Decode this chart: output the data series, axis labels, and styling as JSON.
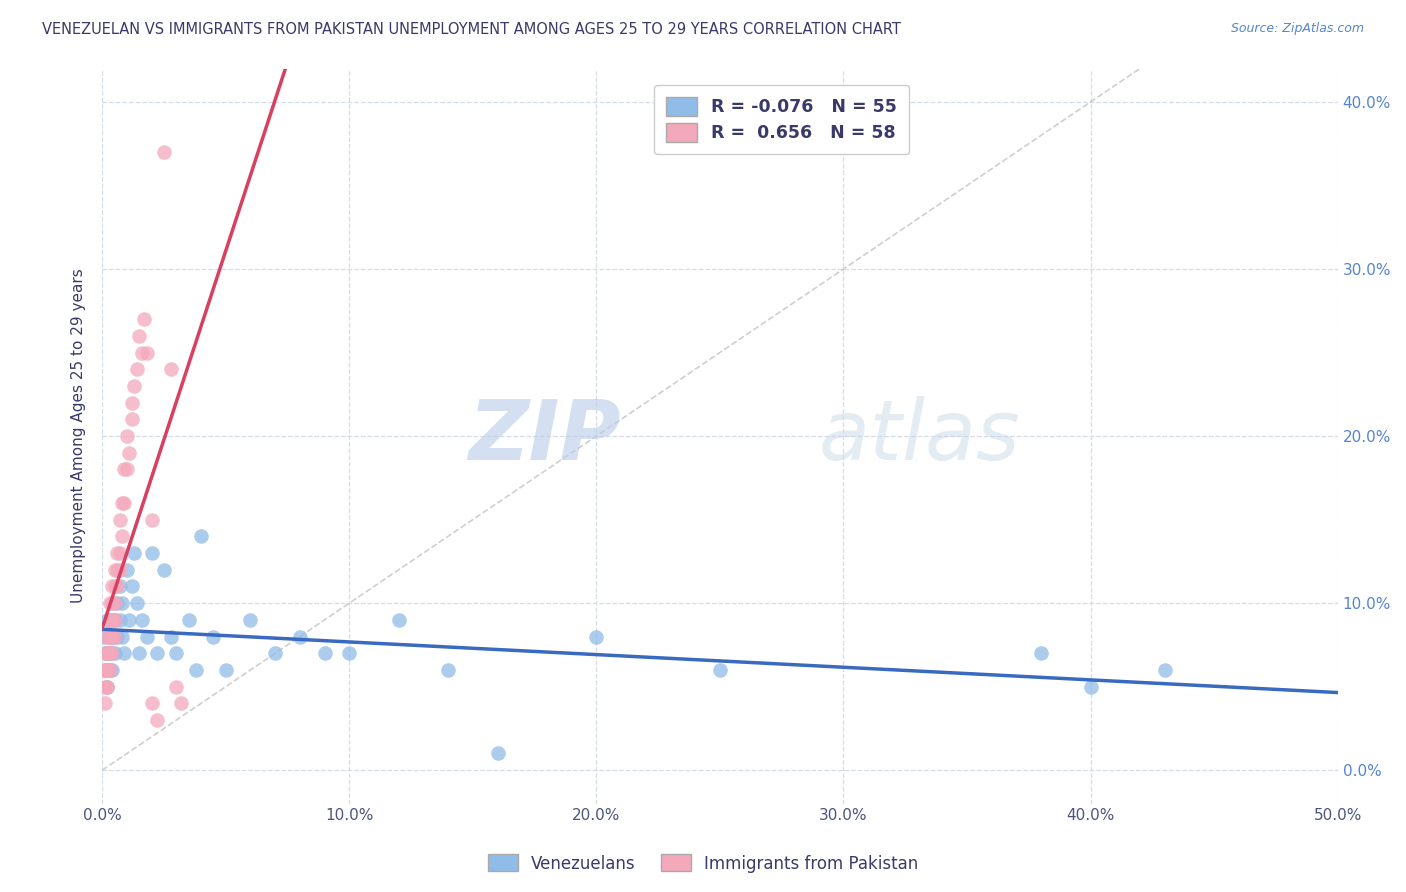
{
  "title": "VENEZUELAN VS IMMIGRANTS FROM PAKISTAN UNEMPLOYMENT AMONG AGES 25 TO 29 YEARS CORRELATION CHART",
  "source": "Source: ZipAtlas.com",
  "ylabel": "Unemployment Among Ages 25 to 29 years",
  "xlim": [
    0,
    0.5
  ],
  "ylim": [
    -0.02,
    0.42
  ],
  "legend_venezuelans": "Venezuelans",
  "legend_pakistan": "Immigrants from Pakistan",
  "R_venezuelan": -0.076,
  "N_venezuelan": 55,
  "R_pakistan": 0.656,
  "N_pakistan": 58,
  "blue_color": "#90bce8",
  "pink_color": "#f4a8bb",
  "blue_line_color": "#3a6abf",
  "pink_line_color": "#d94060",
  "watermark_zip": "ZIP",
  "watermark_atlas": "atlas",
  "watermark_color": "#c5d9f0",
  "background_color": "#ffffff",
  "grid_color": "#d3dce8",
  "x_ticks": [
    0.0,
    0.1,
    0.2,
    0.3,
    0.4,
    0.5
  ],
  "y_ticks": [
    0.0,
    0.1,
    0.2,
    0.3,
    0.4
  ],
  "venezuelan_x": [
    0.001,
    0.001,
    0.001,
    0.002,
    0.002,
    0.002,
    0.002,
    0.003,
    0.003,
    0.003,
    0.003,
    0.004,
    0.004,
    0.004,
    0.005,
    0.005,
    0.005,
    0.006,
    0.006,
    0.007,
    0.007,
    0.008,
    0.008,
    0.009,
    0.01,
    0.011,
    0.012,
    0.013,
    0.014,
    0.015,
    0.016,
    0.018,
    0.02,
    0.022,
    0.025,
    0.028,
    0.03,
    0.035,
    0.038,
    0.04,
    0.045,
    0.05,
    0.06,
    0.07,
    0.08,
    0.09,
    0.1,
    0.12,
    0.14,
    0.16,
    0.2,
    0.25,
    0.38,
    0.4,
    0.43
  ],
  "venezuelan_y": [
    0.07,
    0.06,
    0.08,
    0.07,
    0.05,
    0.09,
    0.06,
    0.08,
    0.07,
    0.06,
    0.09,
    0.07,
    0.08,
    0.06,
    0.08,
    0.07,
    0.09,
    0.1,
    0.08,
    0.09,
    0.11,
    0.08,
    0.1,
    0.07,
    0.12,
    0.09,
    0.11,
    0.13,
    0.1,
    0.07,
    0.09,
    0.08,
    0.13,
    0.07,
    0.12,
    0.08,
    0.07,
    0.09,
    0.06,
    0.14,
    0.08,
    0.06,
    0.09,
    0.07,
    0.08,
    0.07,
    0.07,
    0.09,
    0.06,
    0.01,
    0.08,
    0.06,
    0.07,
    0.05,
    0.06
  ],
  "pakistan_x": [
    0.001,
    0.001,
    0.001,
    0.001,
    0.001,
    0.002,
    0.002,
    0.002,
    0.002,
    0.002,
    0.002,
    0.002,
    0.003,
    0.003,
    0.003,
    0.003,
    0.003,
    0.003,
    0.003,
    0.004,
    0.004,
    0.004,
    0.004,
    0.004,
    0.004,
    0.005,
    0.005,
    0.005,
    0.005,
    0.005,
    0.006,
    0.006,
    0.006,
    0.007,
    0.007,
    0.007,
    0.008,
    0.008,
    0.009,
    0.009,
    0.01,
    0.01,
    0.011,
    0.012,
    0.012,
    0.013,
    0.014,
    0.015,
    0.016,
    0.017,
    0.018,
    0.02,
    0.02,
    0.022,
    0.025,
    0.028,
    0.03,
    0.032
  ],
  "pakistan_y": [
    0.05,
    0.06,
    0.07,
    0.04,
    0.06,
    0.07,
    0.05,
    0.08,
    0.06,
    0.05,
    0.07,
    0.06,
    0.08,
    0.07,
    0.09,
    0.06,
    0.08,
    0.1,
    0.07,
    0.09,
    0.08,
    0.1,
    0.11,
    0.07,
    0.09,
    0.1,
    0.11,
    0.09,
    0.12,
    0.08,
    0.12,
    0.11,
    0.13,
    0.13,
    0.15,
    0.12,
    0.14,
    0.16,
    0.16,
    0.18,
    0.18,
    0.2,
    0.19,
    0.22,
    0.21,
    0.23,
    0.24,
    0.26,
    0.25,
    0.27,
    0.25,
    0.15,
    0.04,
    0.03,
    0.37,
    0.24,
    0.05,
    0.04
  ]
}
